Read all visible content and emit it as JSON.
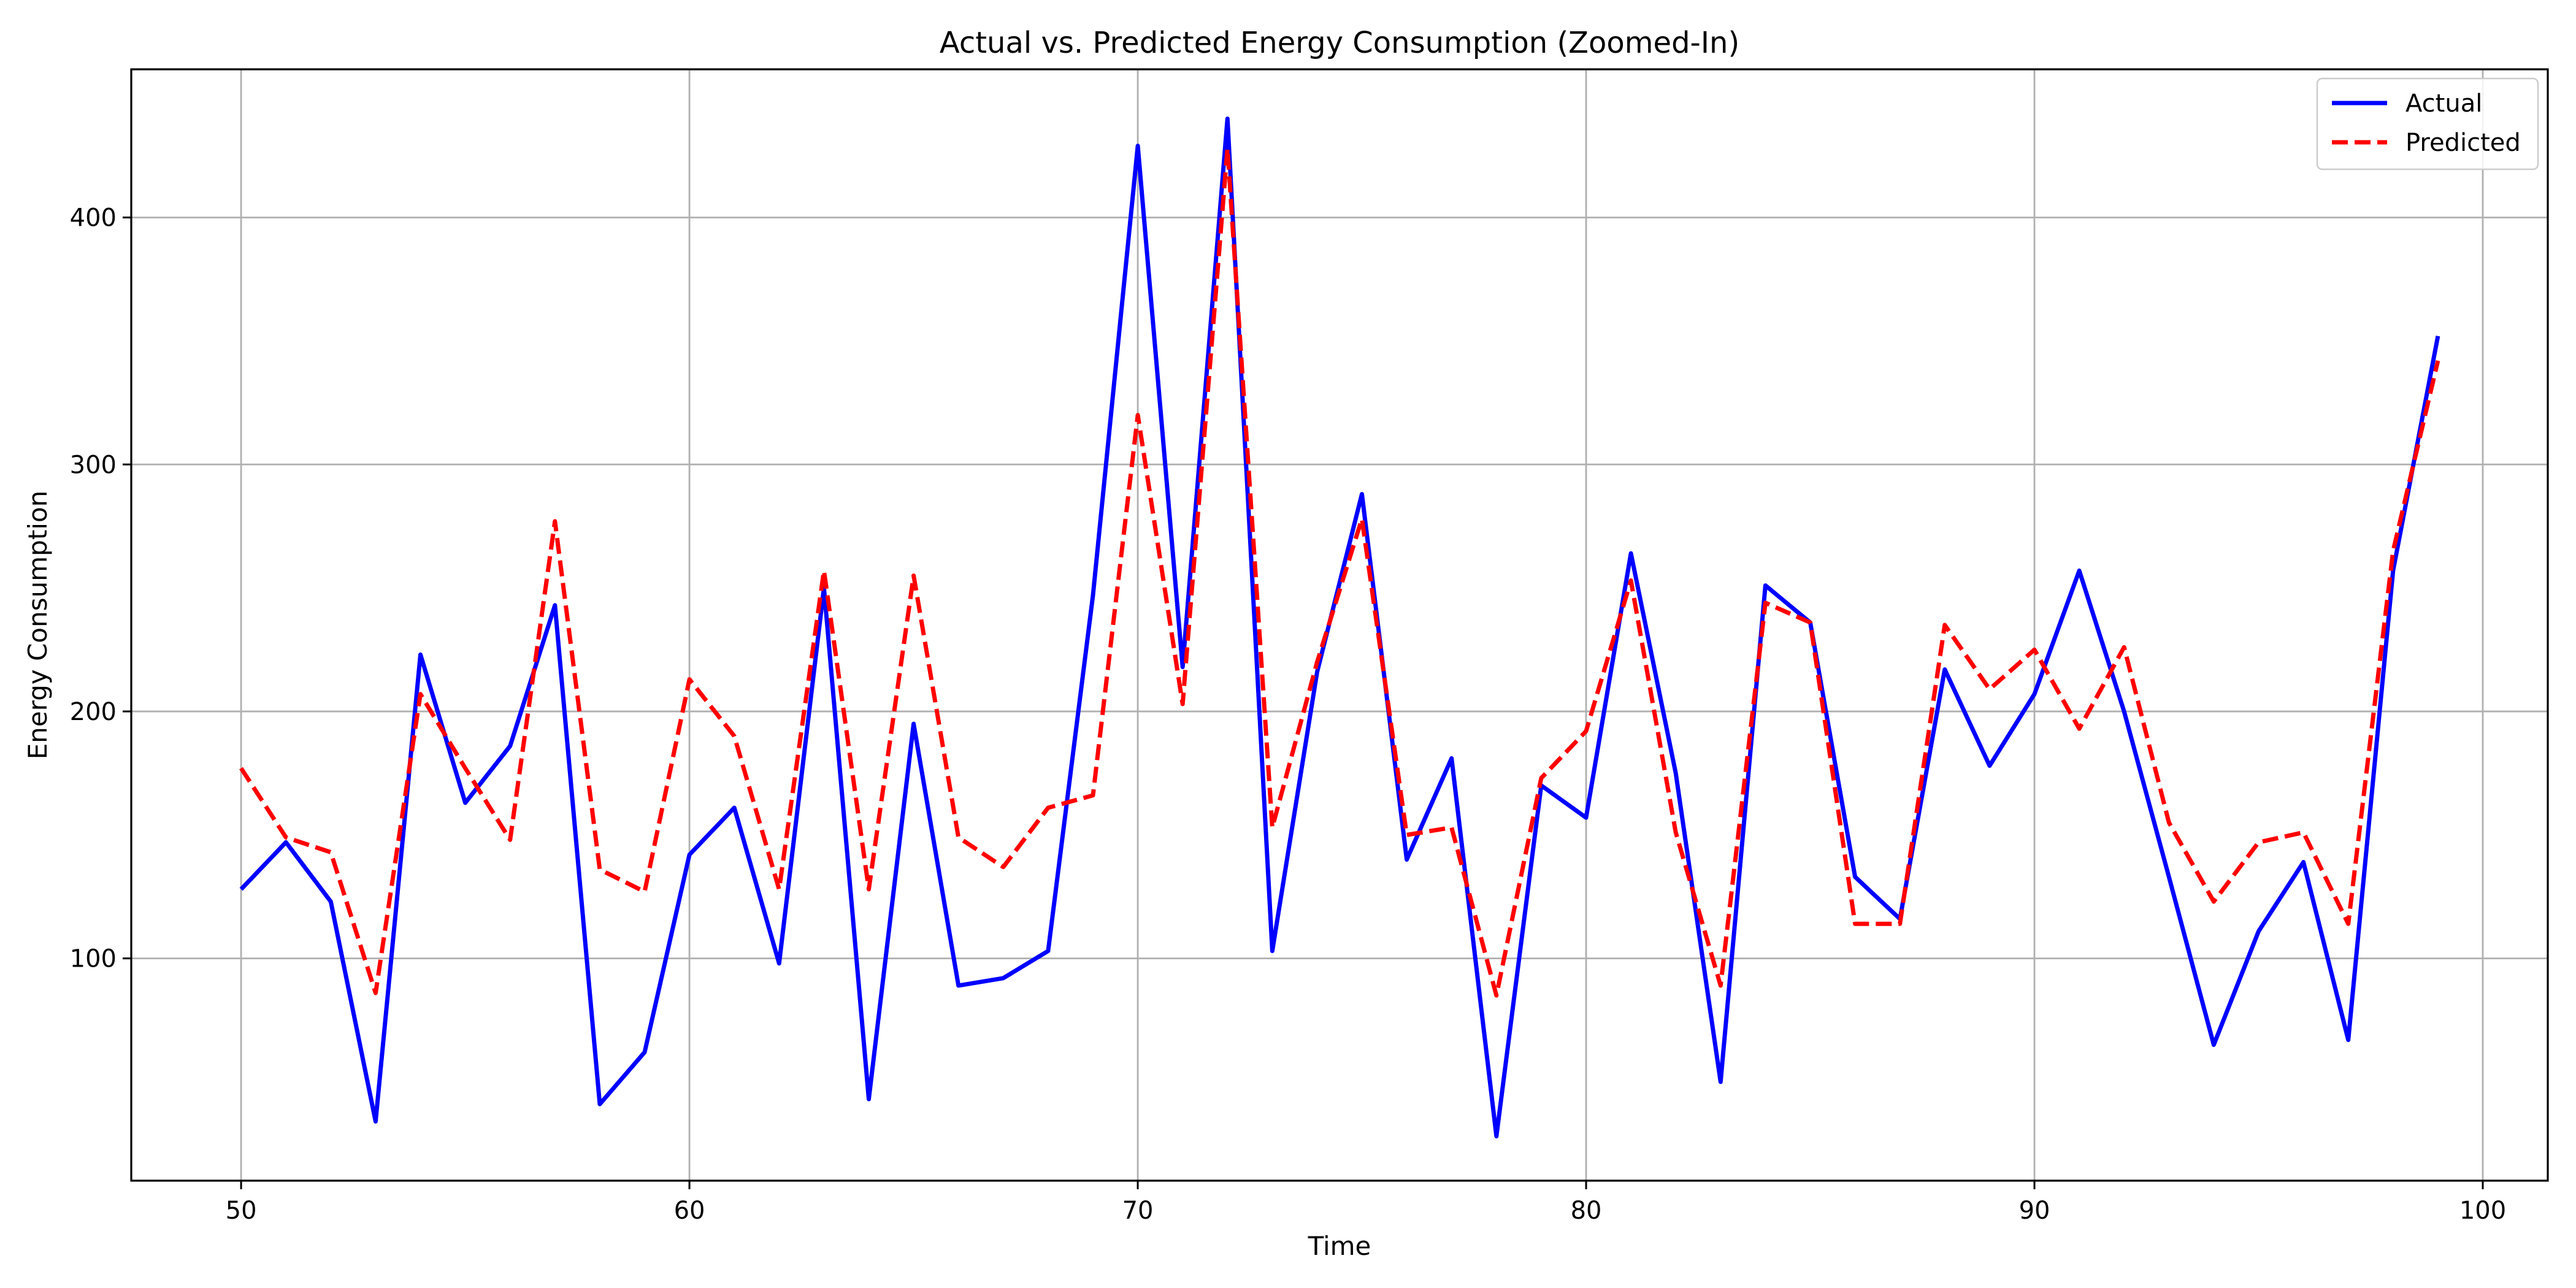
{
  "chart_data": {
    "type": "line",
    "title": "Actual vs. Predicted Energy Consumption (Zoomed-In)",
    "xlabel": "Time",
    "ylabel": "Energy Consumption",
    "xlim": [
      47.55,
      101.45
    ],
    "ylim": [
      10,
      460
    ],
    "x_ticks": [
      50,
      60,
      70,
      80,
      90,
      100
    ],
    "y_ticks": [
      100,
      200,
      300,
      400
    ],
    "grid": true,
    "legend_position": "top-right",
    "x": [
      50,
      51,
      52,
      53,
      54,
      55,
      56,
      57,
      58,
      59,
      60,
      61,
      62,
      63,
      64,
      65,
      66,
      67,
      68,
      69,
      70,
      71,
      72,
      73,
      74,
      75,
      76,
      77,
      78,
      79,
      80,
      81,
      82,
      83,
      84,
      85,
      86,
      87,
      88,
      89,
      90,
      91,
      92,
      93,
      94,
      95,
      96,
      97,
      98,
      99
    ],
    "series": [
      {
        "name": "Actual",
        "color": "#0000ff",
        "style": "solid",
        "values": [
          128,
          147,
          123,
          34,
          223,
          163,
          186,
          243,
          41,
          62,
          142,
          161,
          98,
          250,
          43,
          195,
          89,
          92,
          103,
          247,
          429,
          218,
          440,
          103,
          216,
          288,
          140,
          181,
          28,
          170,
          157,
          264,
          175,
          50,
          251,
          236,
          133,
          116,
          217,
          178,
          207,
          257,
          200,
          133,
          65,
          111,
          139,
          67,
          257,
          352
        ]
      },
      {
        "name": "Predicted",
        "color": "#ff0000",
        "style": "dashed",
        "values": [
          177,
          149,
          143,
          86,
          207,
          177,
          148,
          277,
          136,
          127,
          213,
          190,
          128,
          257,
          128,
          255,
          149,
          137,
          161,
          166,
          320,
          203,
          428,
          153,
          220,
          278,
          150,
          153,
          85,
          173,
          192,
          253,
          151,
          89,
          244,
          236,
          114,
          114,
          235,
          209,
          225,
          193,
          226,
          155,
          123,
          147,
          151,
          114,
          265,
          342
        ]
      }
    ]
  }
}
